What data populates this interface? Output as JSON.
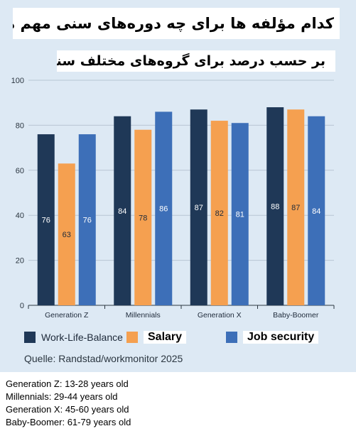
{
  "title": "کدام مؤلفه ها برای چه دوره‌های سنی مهم هستند؟",
  "subtitle": "بر حسب درصد برای گروه‌های مختلف سنی",
  "chart_data": {
    "type": "bar",
    "categories": [
      "Generation Z",
      "Millennials",
      "Generation X",
      "Baby-Boomer"
    ],
    "series": [
      {
        "name": "Work-Life-Balance",
        "color": "#1f3857",
        "values": [
          76,
          84,
          87,
          88
        ]
      },
      {
        "name": "Salary",
        "color": "#f5a050",
        "values": [
          63,
          78,
          82,
          87
        ]
      },
      {
        "name": "Job security",
        "color": "#3d6fb8",
        "values": [
          76,
          86,
          81,
          84
        ]
      }
    ],
    "ylim": [
      0,
      100
    ],
    "yticks": [
      0,
      20,
      40,
      60,
      80,
      100
    ],
    "grid": true,
    "legend_position": "bottom"
  },
  "source": "Quelle: Randstad/workmonitor 2025",
  "notes": [
    "Generation Z: 13-28 years old",
    "Millennials: 29-44 years old",
    "Generation X: 45-60 years old",
    "Baby-Boomer: 61-79 years old"
  ]
}
